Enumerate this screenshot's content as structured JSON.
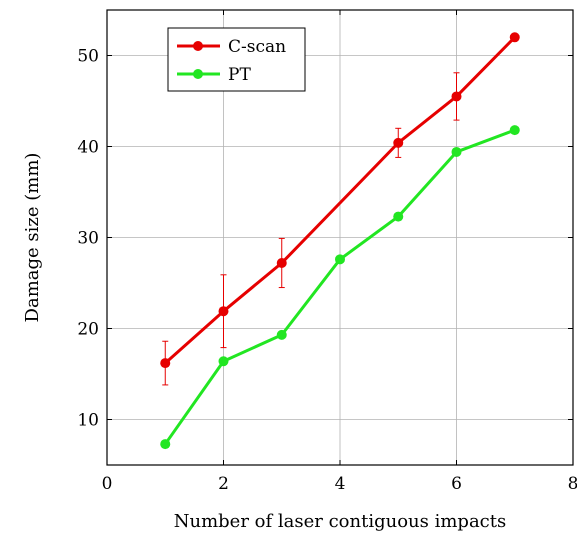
{
  "chart_data": {
    "type": "line",
    "title": "",
    "xlabel": "Number of laser contiguous impacts",
    "ylabel": "Damage size (mm)",
    "xlim": [
      0,
      8
    ],
    "ylim": [
      5,
      55
    ],
    "xticks": [
      0,
      2,
      4,
      6,
      8
    ],
    "yticks": [
      10,
      20,
      30,
      40,
      50
    ],
    "grid": true,
    "legend_position": "top-left",
    "series": [
      {
        "name": "C-scan",
        "color": "#e60000",
        "x": [
          1,
          2,
          3,
          5,
          6,
          7
        ],
        "y": [
          16.2,
          21.9,
          27.2,
          40.4,
          45.5,
          52
        ],
        "error": [
          2.4,
          4.0,
          2.7,
          1.6,
          2.6,
          0.3
        ]
      },
      {
        "name": "PT",
        "color": "#22e622",
        "x": [
          1,
          2,
          3,
          4,
          5,
          6,
          7
        ],
        "y": [
          7.3,
          16.4,
          19.3,
          27.6,
          32.3,
          39.4,
          41.8
        ]
      }
    ]
  }
}
